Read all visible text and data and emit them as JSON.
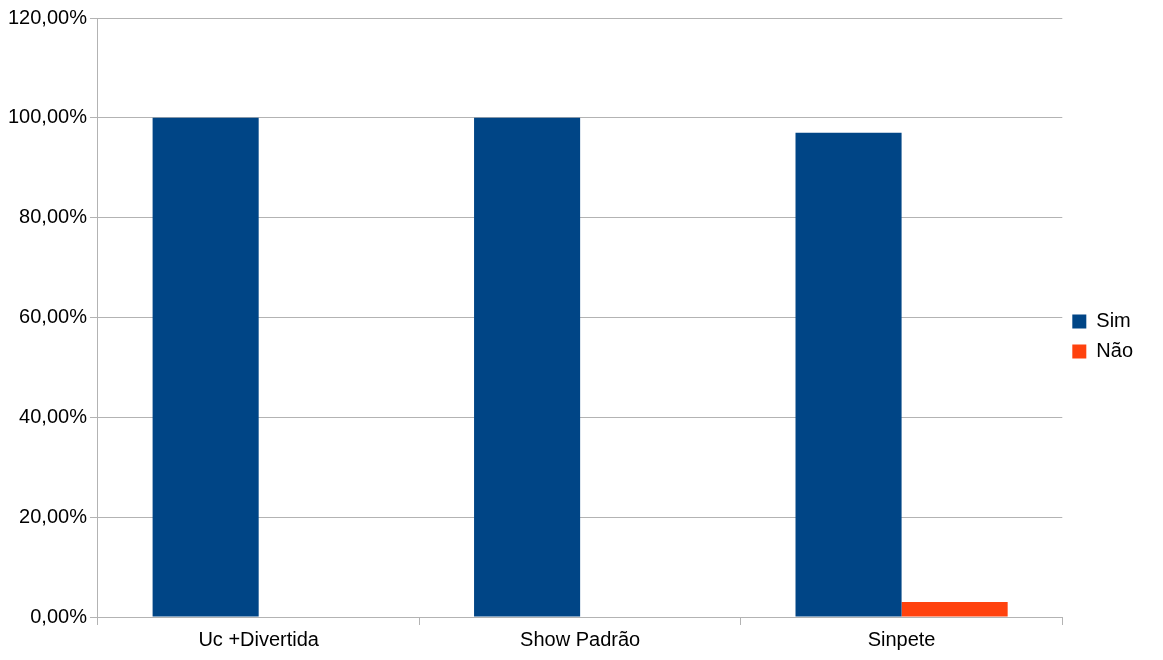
{
  "chart_data": {
    "type": "bar",
    "categories": [
      "Uc +Divertida",
      "Show Padrão",
      "Sinpete"
    ],
    "series": [
      {
        "name": "Sim",
        "color": "#004586",
        "values": [
          100,
          100,
          97
        ]
      },
      {
        "name": "Não",
        "color": "#ff420e",
        "values": [
          0,
          0,
          3
        ]
      }
    ],
    "ylim": [
      0,
      120
    ],
    "yticks": [
      {
        "value": 0,
        "label": "0,00%"
      },
      {
        "value": 20,
        "label": "20,00%"
      },
      {
        "value": 40,
        "label": "40,00%"
      },
      {
        "value": 60,
        "label": "60,00%"
      },
      {
        "value": 80,
        "label": "80,00%"
      },
      {
        "value": 100,
        "label": "100,00%"
      },
      {
        "value": 120,
        "label": "120,00%"
      }
    ],
    "grid": "y",
    "legend": "right"
  }
}
